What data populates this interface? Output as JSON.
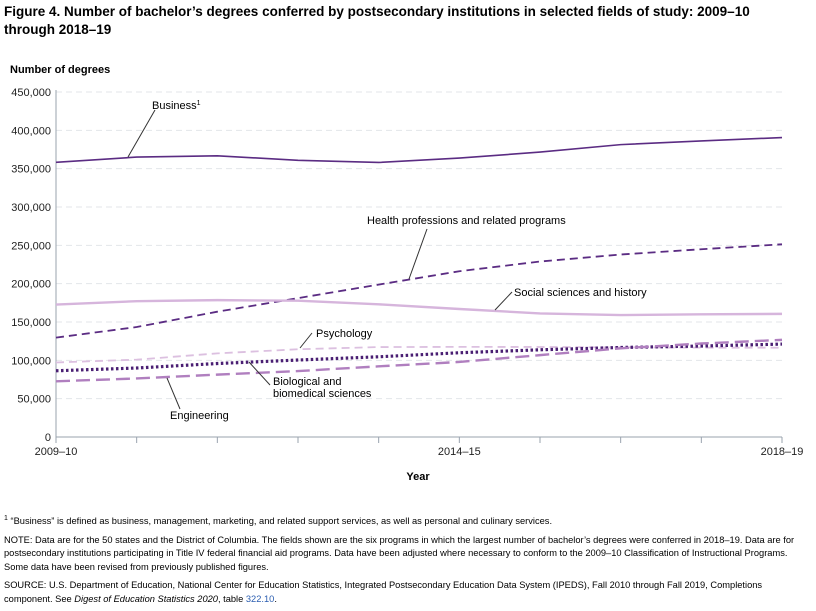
{
  "chart_data": {
    "type": "line",
    "title": "Figure 4. Number of bachelor’s degrees conferred by postsecondary institutions in selected fields of study: 2009–10 through 2018–19",
    "ylabel": "Number of degrees",
    "xlabel": "Year",
    "ylim": [
      0,
      450000
    ],
    "yticks": [
      0,
      50000,
      100000,
      150000,
      200000,
      250000,
      300000,
      350000,
      400000,
      450000
    ],
    "ytick_labels": [
      "0",
      "50,000",
      "100,000",
      "150,000",
      "200,000",
      "250,000",
      "300,000",
      "350,000",
      "400,000",
      "450,000"
    ],
    "x": [
      "2009–10",
      "2010–11",
      "2011–12",
      "2012–13",
      "2013–14",
      "2014–15",
      "2015–16",
      "2016–17",
      "2017–18",
      "2018–19"
    ],
    "xtick_labels": {
      "0": "2009–10",
      "5": "2014–15",
      "9": "2018–19"
    },
    "grid": true,
    "series": [
      {
        "name": "Business",
        "footnote": "1",
        "color": "#5b2c83",
        "style": "solid",
        "values": [
          358293,
          365093,
          366815,
          360887,
          358079,
          363799,
          371630,
          381353,
          386201,
          390564
        ]
      },
      {
        "name": "Health professions and related programs",
        "color": "#5b2c83",
        "style": "dashed",
        "values": [
          129634,
          143430,
          163440,
          181144,
          198770,
          216228,
          228896,
          238014,
          244909,
          251355
        ]
      },
      {
        "name": "Social sciences and history",
        "color": "#d6b5dc",
        "style": "solid",
        "values": [
          172780,
          177144,
          178543,
          177767,
          173096,
          166944,
          161230,
          159099,
          159962,
          160593
        ]
      },
      {
        "name": "Psychology",
        "color": "#dcc0e0",
        "style": "dashed",
        "values": [
          97215,
          100893,
          109099,
          114446,
          117298,
          117557,
          117440,
          116861,
          116536,
          116455
        ]
      },
      {
        "name": "Biological and biomedical sciences",
        "color": "#4a1f73",
        "style": "dotted",
        "values": [
          86400,
          89984,
          95849,
          100397,
          104633,
          109896,
          113749,
          116759,
          118663,
          121191
        ]
      },
      {
        "name": "Engineering",
        "color": "#b07fbf",
        "style": "longdash",
        "values": [
          72654,
          76376,
          81371,
          85987,
          92162,
          97858,
          106789,
          115640,
          121953,
          126692
        ]
      }
    ]
  },
  "labels": {
    "business": "Business",
    "business_sup": "1",
    "health": "Health professions and related programs",
    "social": "Social sciences and history",
    "psych": "Psychology",
    "bio1": "Biological and",
    "bio2": "biomedical sciences",
    "eng": "Engineering"
  },
  "notes": {
    "footnote_mark": "1",
    "footnote": " “Business” is defined as business, management, marketing, and related support services, as well as personal and culinary services.",
    "note": "NOTE: Data are for the 50 states and the District of Columbia. The fields shown are the six programs in which the largest number of bachelor’s degrees were conferred in 2018–19. Data are for postsecondary institutions participating in Title IV federal financial aid programs. Data have been adjusted where necessary to conform to the 2009–10 Classification of Instructional Programs. Some data have been revised from previously published figures.",
    "source_pre": "SOURCE: U.S. Department of Education, National Center for Education Statistics, Integrated Postsecondary Education Data System (IPEDS), Fall 2010 through Fall 2019, Completions component. See ",
    "source_italic": "Digest of Education Statistics 2020",
    "source_mid": ", table ",
    "source_link": "322.10",
    "source_end": "."
  }
}
